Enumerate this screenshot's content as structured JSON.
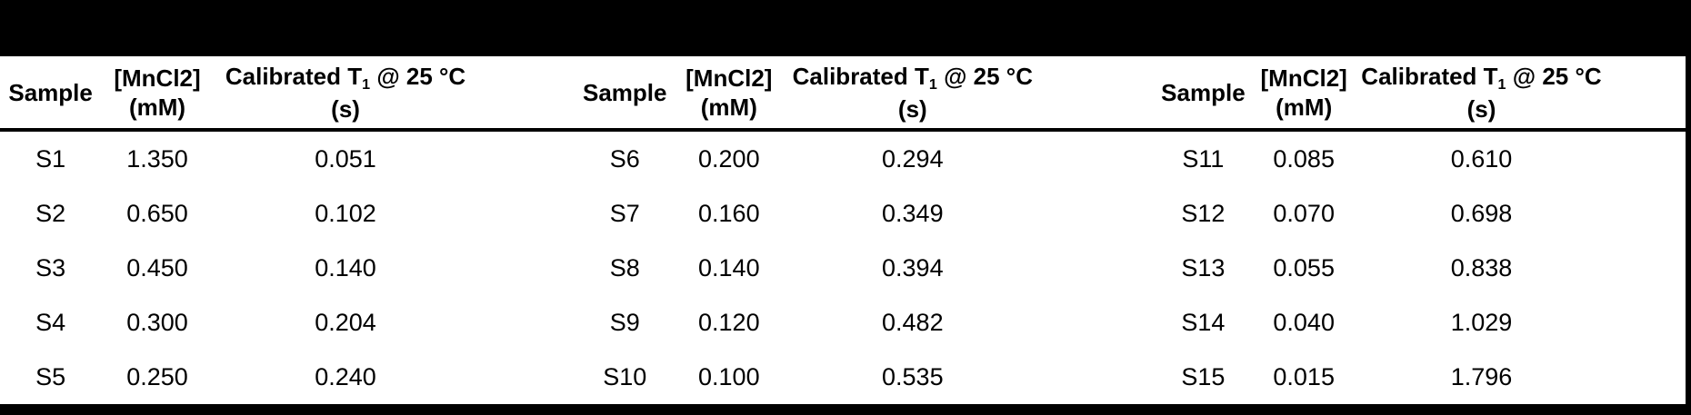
{
  "page": {
    "background_color": "#ffffff",
    "band_color": "#000000",
    "text_color": "#000000"
  },
  "table": {
    "header": {
      "sample": "Sample",
      "conc_line1": "[MnCl2]",
      "conc_line2": "(mM)",
      "t1_prefix": "Calibrated T",
      "t1_sub": "1",
      "t1_suffix": "@ 25 °C",
      "t1_line2": "(s)"
    },
    "groups": [
      {
        "rows": [
          {
            "sample": "S1",
            "mncl2_mM": "1.350",
            "t1_s": "0.051"
          },
          {
            "sample": "S2",
            "mncl2_mM": "0.650",
            "t1_s": "0.102"
          },
          {
            "sample": "S3",
            "mncl2_mM": "0.450",
            "t1_s": "0.140"
          },
          {
            "sample": "S4",
            "mncl2_mM": "0.300",
            "t1_s": "0.204"
          },
          {
            "sample": "S5",
            "mncl2_mM": "0.250",
            "t1_s": "0.240"
          }
        ]
      },
      {
        "rows": [
          {
            "sample": "S6",
            "mncl2_mM": "0.200",
            "t1_s": "0.294"
          },
          {
            "sample": "S7",
            "mncl2_mM": "0.160",
            "t1_s": "0.349"
          },
          {
            "sample": "S8",
            "mncl2_mM": "0.140",
            "t1_s": "0.394"
          },
          {
            "sample": "S9",
            "mncl2_mM": "0.120",
            "t1_s": "0.482"
          },
          {
            "sample": "S10",
            "mncl2_mM": "0.100",
            "t1_s": "0.535"
          }
        ]
      },
      {
        "rows": [
          {
            "sample": "S11",
            "mncl2_mM": "0.085",
            "t1_s": "0.610"
          },
          {
            "sample": "S12",
            "mncl2_mM": "0.070",
            "t1_s": "0.698"
          },
          {
            "sample": "S13",
            "mncl2_mM": "0.055",
            "t1_s": "0.838"
          },
          {
            "sample": "S14",
            "mncl2_mM": "0.040",
            "t1_s": "1.029"
          },
          {
            "sample": "S15",
            "mncl2_mM": "0.015",
            "t1_s": "1.796"
          }
        ]
      }
    ]
  }
}
